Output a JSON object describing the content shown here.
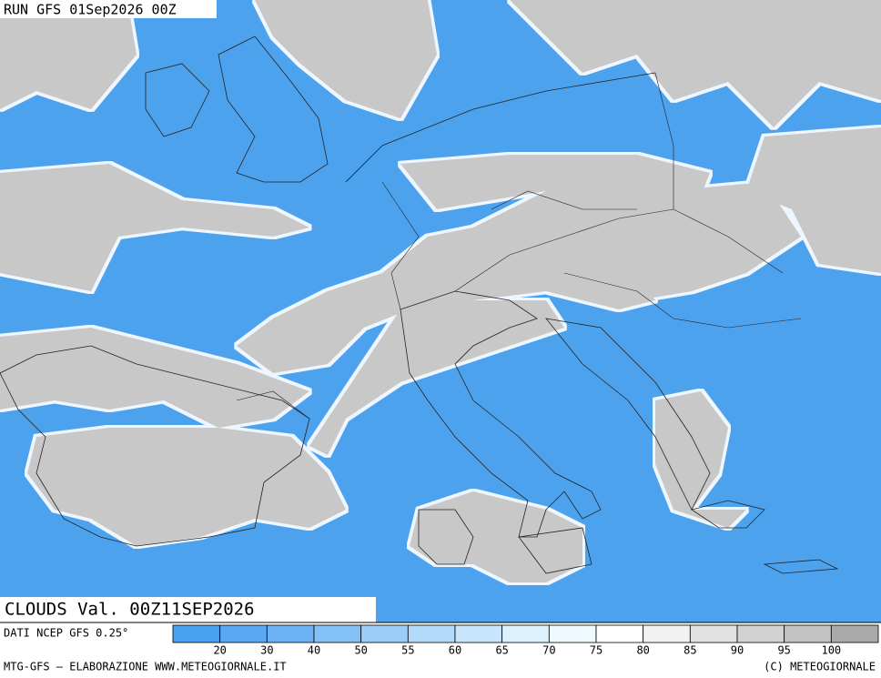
{
  "header": {
    "title": "RUN GFS 01Sep2026 00Z",
    "valid": "CLOUDS Val. 00Z11SEP2026"
  },
  "legend": {
    "source": "DATI NCEP GFS 0.25°",
    "labels": [
      20,
      30,
      40,
      50,
      55,
      60,
      65,
      70,
      75,
      80,
      85,
      90,
      95,
      100
    ],
    "colors": [
      "#4aa0f0",
      "#5aa8f2",
      "#6ab2f4",
      "#82c0f6",
      "#9acdf7",
      "#b2daf9",
      "#c8e6fb",
      "#ddf1fc",
      "#eefaff",
      "#ffffff",
      "#f2f2f2",
      "#e2e2e2",
      "#d2d2d2",
      "#c2c2c2",
      "#aaaaaa"
    ]
  },
  "footer": {
    "left": "MTG-GFS — ELABORAZIONE WWW.METEOGIORNALE.IT",
    "right": "(C) METEOGIORNALE"
  }
}
